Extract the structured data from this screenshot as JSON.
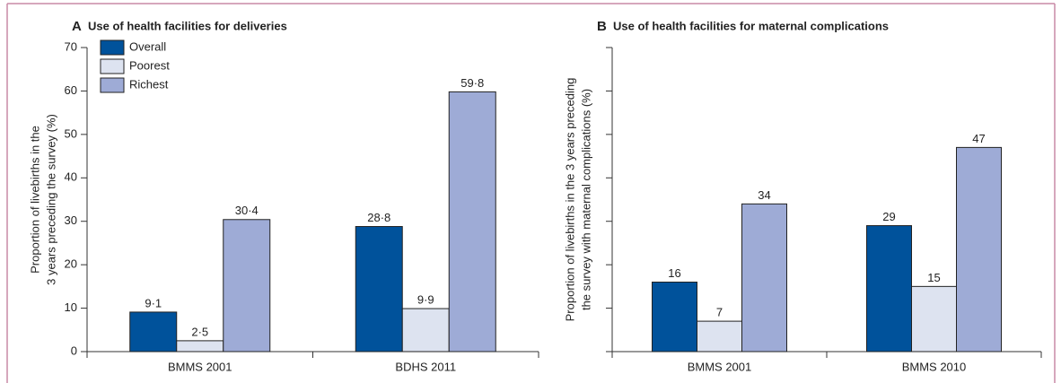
{
  "chart_data": [
    {
      "type": "bar",
      "panel": "A",
      "title": "Use of health facilities for deliveries",
      "ylabel": [
        "Proportion of livebirths in the",
        "3 years preceding the survey (%)"
      ],
      "categories": [
        "BMMS 2001",
        "BDHS 2011"
      ],
      "series": [
        {
          "name": "Overall",
          "color": "#00529b",
          "values": [
            9.1,
            28.8
          ],
          "value_labels": [
            "9·1",
            "28·8"
          ]
        },
        {
          "name": "Poorest",
          "color": "#dde3f0",
          "values": [
            2.5,
            9.9
          ],
          "value_labels": [
            "2·5",
            "9·9"
          ]
        },
        {
          "name": "Richest",
          "color": "#9eabd6",
          "values": [
            30.4,
            59.8
          ],
          "value_labels": [
            "30·4",
            "59·8"
          ]
        }
      ],
      "ylim": [
        0,
        70
      ],
      "yticks": [
        0,
        10,
        20,
        30,
        40,
        50,
        60,
        70
      ],
      "ytick_labels": true,
      "legend": "upper left"
    },
    {
      "type": "bar",
      "panel": "B",
      "title": "Use of health facilities for maternal complications",
      "ylabel": [
        "Proportion of livebirths in the 3 years preceding",
        "the survey with maternal complications (%)"
      ],
      "categories": [
        "BMMS 2001",
        "BMMS 2010"
      ],
      "series": [
        {
          "color": "#00529b",
          "values": [
            16,
            29
          ]
        },
        {
          "color": "#dde3f0",
          "values": [
            7,
            15
          ]
        },
        {
          "color": "#9eabd6",
          "values": [
            34,
            47
          ]
        }
      ],
      "ylim": [
        0,
        70
      ],
      "yticks": [
        0,
        10,
        20,
        30,
        40,
        50,
        60,
        70
      ],
      "ytick_labels": false
    }
  ]
}
